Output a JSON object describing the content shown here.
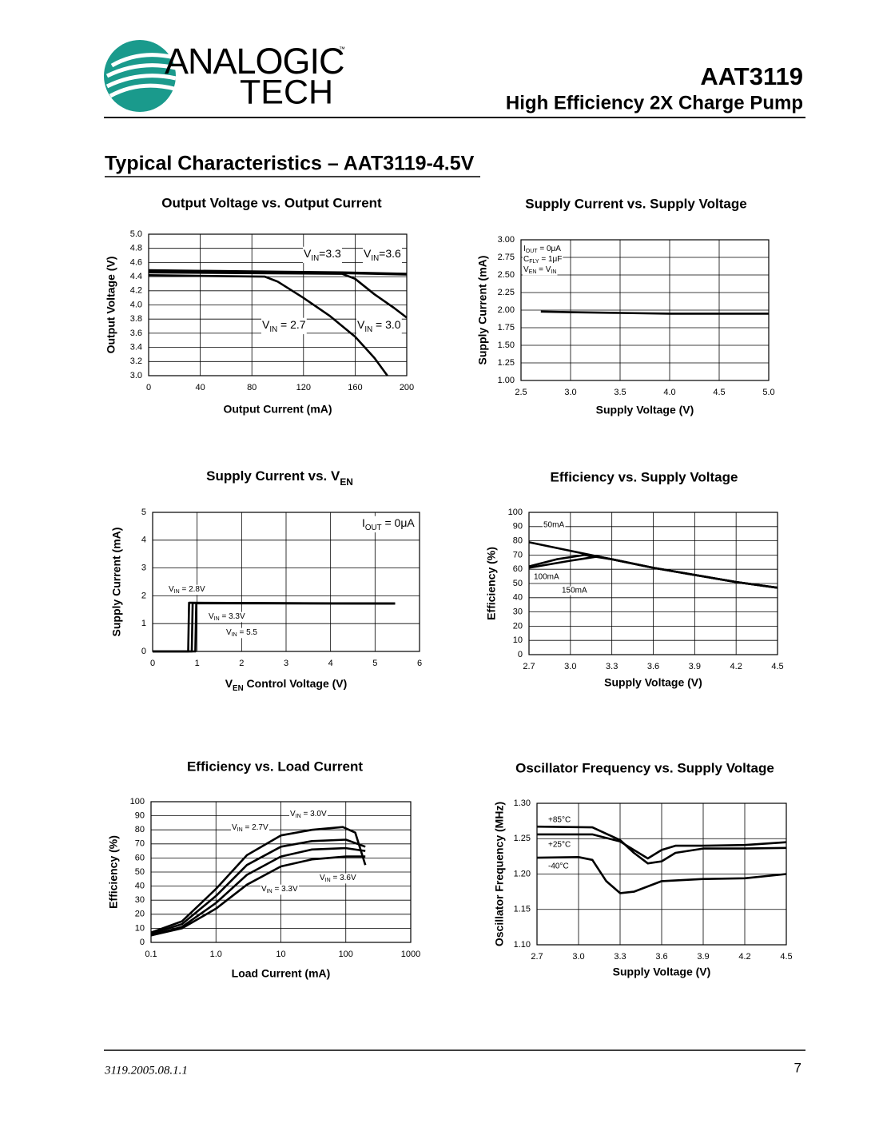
{
  "header": {
    "logo_top": "ANALOGIC",
    "logo_bottom": "TECH",
    "trademark": "™",
    "part": "AAT3119",
    "subtitle": "High Efficiency 2X Charge Pump"
  },
  "section_title": "Typical Characteristics – AAT3119-4.5V",
  "chart_data": [
    {
      "type": "line",
      "title": "Output Voltage vs. Output Current",
      "xlabel": "Output Current (mA)",
      "ylabel": "Output Voltage (V)",
      "xlim": [
        0,
        200
      ],
      "xticks": [
        0,
        40,
        80,
        120,
        160,
        200
      ],
      "ylim": [
        3,
        5
      ],
      "yticks": [
        {
          "value": 3,
          "label": "3.0"
        },
        3.2,
        3.4,
        3.6,
        3.8,
        {
          "value": 4,
          "label": "4.0"
        },
        4.2,
        4.4,
        4.6,
        4.8,
        {
          "value": 5,
          "label": "5.0"
        }
      ],
      "grid": true,
      "series": [
        {
          "name": [
            "V",
            "IN",
            "=3.3"
          ],
          "color": "#000000",
          "x": [
            0,
            100,
            150,
            200
          ],
          "values": [
            4.47,
            4.46,
            4.45,
            4.43
          ]
        },
        {
          "name": [
            "V",
            "IN",
            "=3.6"
          ],
          "color": "#000000",
          "x": [
            0,
            100,
            150,
            200
          ],
          "values": [
            4.49,
            4.47,
            4.46,
            4.44
          ]
        },
        {
          "name": [
            "V",
            "IN",
            " = 2.7"
          ],
          "color": "#000000",
          "x": [
            0,
            90,
            100,
            120,
            140,
            160,
            175,
            185
          ],
          "values": [
            4.42,
            4.4,
            4.33,
            4.1,
            3.85,
            3.55,
            3.25,
            3.0
          ]
        },
        {
          "name": [
            "V",
            "IN",
            " = 3.0"
          ],
          "color": "#000000",
          "x": [
            0,
            150,
            160,
            175,
            190,
            200
          ],
          "values": [
            4.46,
            4.44,
            4.37,
            4.15,
            3.96,
            3.82
          ]
        }
      ]
    },
    {
      "type": "line",
      "title": "Supply Current vs. Supply Voltage",
      "xlabel": "Supply Voltage (V)",
      "ylabel": "Supply Current (mA)",
      "xlim": [
        2.5,
        5
      ],
      "xticks": [
        2.5,
        {
          "value": 3,
          "label": "3.0"
        },
        3.5,
        {
          "value": 4,
          "label": "4.0"
        },
        4.5,
        {
          "value": 5,
          "label": "5.0"
        }
      ],
      "ylim": [
        1,
        3
      ],
      "yticks": [
        {
          "value": 1,
          "label": "1.00"
        },
        1.25,
        {
          "value": 1.5,
          "label": "1.50"
        },
        1.75,
        {
          "value": 2,
          "label": "2.00"
        },
        2.25,
        {
          "value": 2.5,
          "label": "2.50"
        },
        2.75,
        {
          "value": 3,
          "label": "3.00"
        }
      ],
      "grid": true,
      "annotations": [
        [
          "I",
          "OUT",
          " = 0μA"
        ],
        [
          "C",
          "FLY",
          " = 1μF"
        ],
        [
          "V",
          "EN",
          " = V",
          "IN"
        ]
      ],
      "series": [
        {
          "color": "#000000",
          "x": [
            2.7,
            3.0,
            3.5,
            4.0,
            4.5,
            5.0
          ],
          "values": [
            1.98,
            1.97,
            1.96,
            1.95,
            1.95,
            1.95
          ]
        }
      ]
    },
    {
      "type": "line",
      "title": [
        "Supply Current vs. V",
        "EN"
      ],
      "xlabel": [
        "V",
        "EN",
        " Control Voltage (V)"
      ],
      "ylabel": "Supply Current (mA)",
      "xlim": [
        0,
        6
      ],
      "xticks": [
        0,
        1,
        2,
        3,
        4,
        5,
        6
      ],
      "ylim": [
        0,
        5
      ],
      "yticks": [
        0,
        1,
        2,
        3,
        4,
        5
      ],
      "grid": true,
      "annotations": [
        [
          "I",
          "OUT",
          " = 0μA"
        ]
      ],
      "series": [
        {
          "name": [
            "V",
            "IN",
            " = 2.8V"
          ],
          "color": "#000000",
          "x": [
            0,
            0.8,
            0.82,
            5.45
          ],
          "values": [
            0,
            0,
            1.75,
            1.72
          ]
        },
        {
          "name": [
            "V",
            "IN",
            " = 3.3V"
          ],
          "color": "#000000",
          "x": [
            0,
            0.88,
            0.9,
            5.45
          ],
          "values": [
            0,
            0,
            1.74,
            1.72
          ]
        },
        {
          "name": [
            "V",
            "IN",
            " = 5.5"
          ],
          "color": "#000000",
          "x": [
            0,
            0.96,
            0.98,
            5.45
          ],
          "values": [
            0,
            0,
            1.73,
            1.72
          ]
        }
      ]
    },
    {
      "type": "line",
      "title": "Efficiency vs. Supply Voltage",
      "xlabel": "Supply Voltage (V)",
      "ylabel": "Efficiency (%)",
      "xlim": [
        2.7,
        4.5
      ],
      "xticks": [
        2.7,
        {
          "value": 3,
          "label": "3.0"
        },
        3.3,
        3.6,
        3.9,
        4.2,
        4.5
      ],
      "ylim": [
        0,
        100
      ],
      "yticks": [
        0,
        10,
        20,
        30,
        40,
        50,
        60,
        70,
        80,
        90,
        100
      ],
      "grid": true,
      "series": [
        {
          "name": "50mA",
          "color": "#000000",
          "x": [
            2.7,
            3.0,
            3.3,
            3.6,
            3.9,
            4.2,
            4.5
          ],
          "values": [
            79,
            73,
            67,
            61,
            56,
            51,
            47
          ]
        },
        {
          "name": "100mA",
          "color": "#000000",
          "x": [
            2.7,
            2.9,
            3.1,
            3.3,
            3.6,
            3.9,
            4.2,
            4.5
          ],
          "values": [
            62,
            67,
            70,
            67,
            61,
            56,
            51,
            47
          ]
        },
        {
          "name": "150mA",
          "color": "#000000",
          "x": [
            2.7,
            3.0,
            3.2,
            3.3,
            3.6,
            3.9,
            4.2,
            4.5
          ],
          "values": [
            61,
            66,
            69,
            67,
            61,
            56,
            51,
            47
          ]
        }
      ]
    },
    {
      "type": "line",
      "title": "Efficiency vs. Load Current",
      "xlabel": "Load Current (mA)",
      "ylabel": "Efficiency (%)",
      "log_x": true,
      "xlim": [
        0.1,
        1000
      ],
      "xticks": [
        0.1,
        {
          "value": 1,
          "label": "1.0"
        },
        10,
        100,
        1000
      ],
      "ylim": [
        0,
        100
      ],
      "yticks": [
        0,
        10,
        20,
        30,
        40,
        50,
        60,
        70,
        80,
        90,
        100
      ],
      "grid": true,
      "series": [
        {
          "name": [
            "V",
            "IN",
            " = 3.0V"
          ],
          "color": "#000000",
          "x": [
            0.1,
            0.3,
            1,
            3,
            10,
            30,
            100,
            200
          ],
          "values": [
            6,
            13,
            33,
            55,
            68,
            72,
            73,
            68
          ]
        },
        {
          "name": [
            "V",
            "IN",
            " = 2.7V"
          ],
          "color": "#000000",
          "x": [
            0.1,
            0.3,
            1,
            3,
            10,
            30,
            90,
            140,
            200
          ],
          "values": [
            7,
            15,
            38,
            62,
            76,
            80,
            82,
            78,
            55
          ]
        },
        {
          "name": [
            "V",
            "IN",
            " = 3.3V"
          ],
          "color": "#000000",
          "x": [
            0.1,
            0.3,
            1,
            3,
            10,
            30,
            100,
            200
          ],
          "values": [
            5,
            11,
            28,
            48,
            61,
            66,
            67,
            65
          ]
        },
        {
          "name": [
            "V",
            "IN",
            " = 3.6V"
          ],
          "color": "#000000",
          "x": [
            0.1,
            0.3,
            1,
            3,
            10,
            30,
            100,
            200
          ],
          "values": [
            5,
            10,
            24,
            41,
            54,
            59,
            61,
            61
          ]
        }
      ]
    },
    {
      "type": "line",
      "title": "Oscillator Frequency vs. Supply Voltage",
      "xlabel": "Supply Voltage (V)",
      "ylabel": "Oscillator Frequency (MHz)",
      "xlim": [
        2.7,
        4.5
      ],
      "xticks": [
        2.7,
        {
          "value": 3,
          "label": "3.0"
        },
        3.3,
        3.6,
        3.9,
        4.2,
        4.5
      ],
      "ylim": [
        1.1,
        1.3
      ],
      "yticks": [
        {
          "value": 1.1,
          "label": "1.10"
        },
        1.15,
        {
          "value": 1.2,
          "label": "1.20"
        },
        1.25,
        {
          "value": 1.3,
          "label": "1.30"
        }
      ],
      "grid": true,
      "series": [
        {
          "name": "+85°C",
          "color": "#000000",
          "x": [
            2.7,
            3.1,
            3.3,
            3.4,
            3.5,
            3.6,
            3.7,
            3.9,
            4.2,
            4.5
          ],
          "values": [
            1.267,
            1.266,
            1.248,
            1.23,
            1.215,
            1.218,
            1.23,
            1.236,
            1.236,
            1.237
          ]
        },
        {
          "name": "+25°C",
          "color": "#000000",
          "x": [
            2.7,
            3.1,
            3.3,
            3.5,
            3.6,
            3.7,
            3.9,
            4.2,
            4.5
          ],
          "values": [
            1.256,
            1.256,
            1.246,
            1.222,
            1.234,
            1.24,
            1.24,
            1.241,
            1.245
          ]
        },
        {
          "name": "-40°C",
          "color": "#000000",
          "x": [
            2.7,
            3.0,
            3.1,
            3.2,
            3.3,
            3.4,
            3.6,
            3.9,
            4.2,
            4.5
          ],
          "values": [
            1.223,
            1.224,
            1.22,
            1.19,
            1.173,
            1.175,
            1.19,
            1.193,
            1.194,
            1.2
          ]
        }
      ]
    }
  ],
  "footer": {
    "doc_id": "3119.2005.08.1.1",
    "page": 7
  }
}
